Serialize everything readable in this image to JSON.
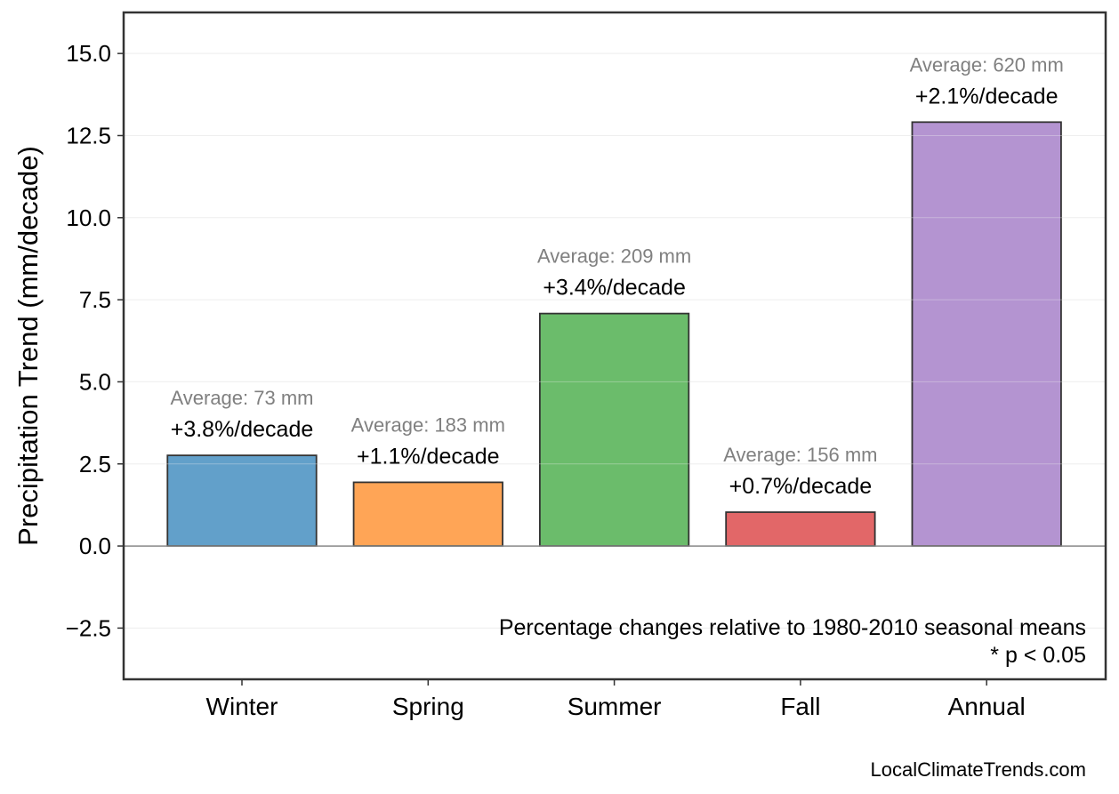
{
  "chart_data": {
    "type": "bar",
    "title": "",
    "xlabel": "",
    "ylabel": "Precipitation Trend (mm/decade)",
    "categories": [
      "Winter",
      "Spring",
      "Summer",
      "Fall",
      "Annual"
    ],
    "values": [
      2.76,
      1.94,
      7.08,
      1.03,
      12.91
    ],
    "colors": [
      "#1f77b4",
      "#ff7f0e",
      "#2ca02c",
      "#d62728",
      "#9467bd"
    ],
    "percent_labels": [
      "+3.8%/decade",
      "+1.1%/decade",
      "+3.4%/decade",
      "+0.7%/decade",
      "+2.1%/decade"
    ],
    "average_labels": [
      "Average: 73 mm",
      "Average: 183 mm",
      "Average: 209 mm",
      "Average: 156 mm",
      "Average: 620 mm"
    ],
    "ylim": [
      -4.06,
      16.25
    ],
    "yticks": [
      -2.5,
      0.0,
      2.5,
      5.0,
      7.5,
      10.0,
      12.5,
      15.0
    ],
    "ytick_labels": [
      "−2.5",
      "0.0",
      "2.5",
      "5.0",
      "7.5",
      "10.0",
      "12.5",
      "15.0"
    ],
    "grid": true,
    "note_lines": [
      "Percentage changes relative to 1980-2010 seasonal means",
      "* p < 0.05"
    ]
  },
  "footer": "LocalClimateTrends.com"
}
